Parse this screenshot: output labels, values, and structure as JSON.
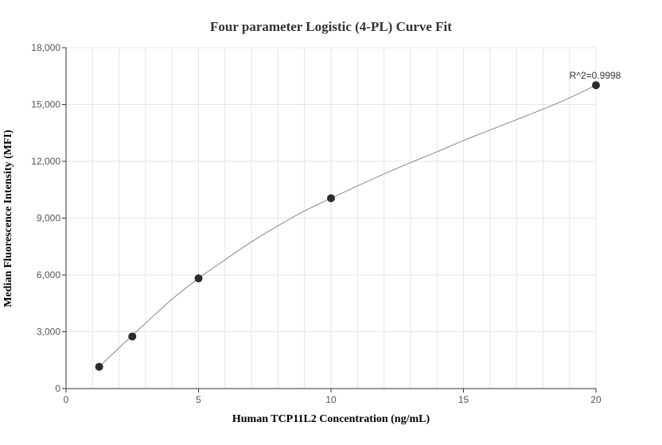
{
  "chart_data": {
    "type": "scatter",
    "title": "Four parameter Logistic (4-PL) Curve Fit",
    "xlabel": "Human TCP11L2 Concentration (ng/mL)",
    "ylabel": "Median Fluorescence Intensity (MFI)",
    "xlim": [
      0,
      20
    ],
    "ylim": [
      0,
      18000
    ],
    "x_ticks": [
      0,
      5,
      10,
      15,
      20
    ],
    "x_tick_labels": [
      "0",
      "5",
      "10",
      "15",
      "20"
    ],
    "y_ticks": [
      0,
      3000,
      6000,
      9000,
      12000,
      15000,
      18000
    ],
    "y_tick_labels": [
      "0",
      "3,000",
      "6,000",
      "9,000",
      "12,000",
      "15,000",
      "18,000"
    ],
    "grid": true,
    "points": [
      {
        "x": 1.25,
        "y": 1150
      },
      {
        "x": 2.5,
        "y": 2750
      },
      {
        "x": 5,
        "y": 5820
      },
      {
        "x": 10,
        "y": 10050
      },
      {
        "x": 20,
        "y": 16020
      }
    ],
    "fit_curve": {
      "x": [
        1.25,
        2,
        3,
        4,
        5,
        6,
        7,
        8,
        9,
        10,
        11,
        12,
        13,
        14,
        15,
        16,
        17,
        18,
        19,
        20
      ],
      "y": [
        1150,
        2150,
        3450,
        4720,
        5820,
        6800,
        7750,
        8600,
        9380,
        10050,
        10700,
        11330,
        11930,
        12500,
        13100,
        13650,
        14200,
        14750,
        15350,
        16020
      ]
    },
    "annotation": "R^2=0.9998",
    "colors": {
      "points": "#2b2b2b",
      "curve": "#888888",
      "grid": "#e6e6e6",
      "axis": "#333333"
    }
  }
}
